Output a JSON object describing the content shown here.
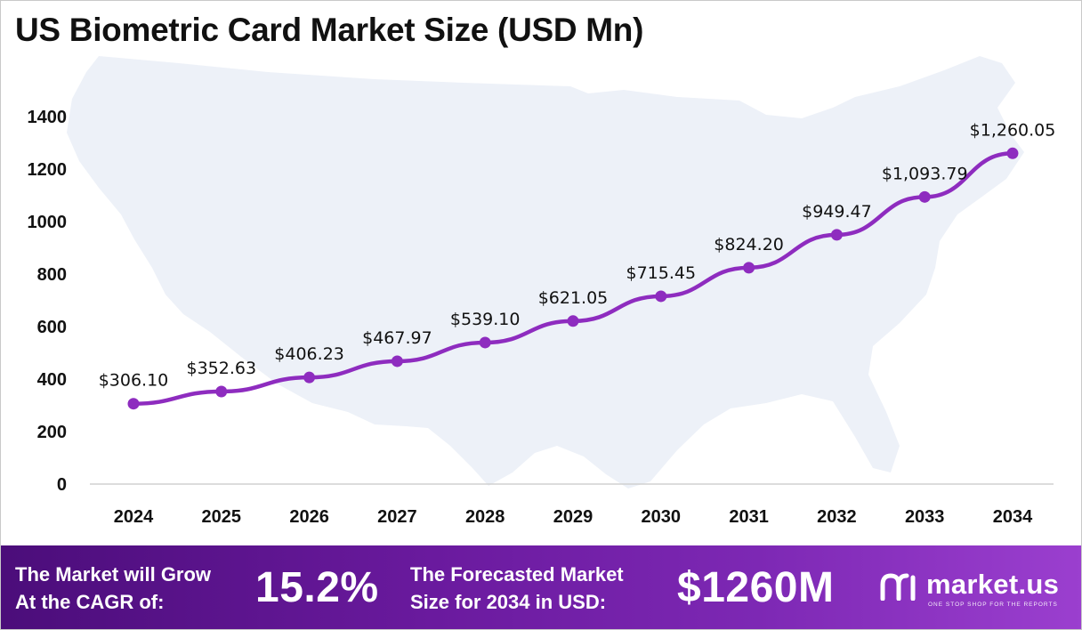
{
  "title": "US Biometric Card Market Size (USD Mn)",
  "chart_data": {
    "type": "line",
    "title": "US Biometric Card Market Size (USD Mn)",
    "xlabel": "",
    "ylabel": "",
    "categories": [
      "2024",
      "2025",
      "2026",
      "2027",
      "2028",
      "2029",
      "2030",
      "2031",
      "2032",
      "2033",
      "2034"
    ],
    "series": [
      {
        "values": [
          306.1,
          352.63,
          406.23,
          467.97,
          539.1,
          621.05,
          715.45,
          824.2,
          949.47,
          1093.79,
          1260.05
        ],
        "data_labels": [
          "$306.10",
          "$352.63",
          "$406.23",
          "$467.97",
          "$539.10",
          "$621.05",
          "$715.45",
          "$824.20",
          "$949.47",
          "$1,093.79",
          "$1,260.05"
        ]
      }
    ],
    "yticks": [
      0,
      200,
      400,
      600,
      800,
      1000,
      1200,
      1400
    ],
    "ylim": [
      0,
      1400
    ],
    "grid": false,
    "legend": "none",
    "line_color": "#8e2cbf",
    "background_map": "united-states-map-silhouette"
  },
  "footer": {
    "cagr_label_line1": "The Market will Grow",
    "cagr_label_line2": "At the CAGR of:",
    "cagr_value": "15.2%",
    "forecast_label_line1": "The Forecasted Market",
    "forecast_label_line2": "Size for 2034 in USD:",
    "forecast_value": "$1260M",
    "brand_name": "market.us",
    "brand_tagline": "ONE STOP SHOP FOR THE REPORTS",
    "brand_icon": "market-us-logo-icon",
    "colors": {
      "gradient_start": "#4b0d7a",
      "gradient_end": "#9b3fcf",
      "text": "#ffffff"
    }
  }
}
